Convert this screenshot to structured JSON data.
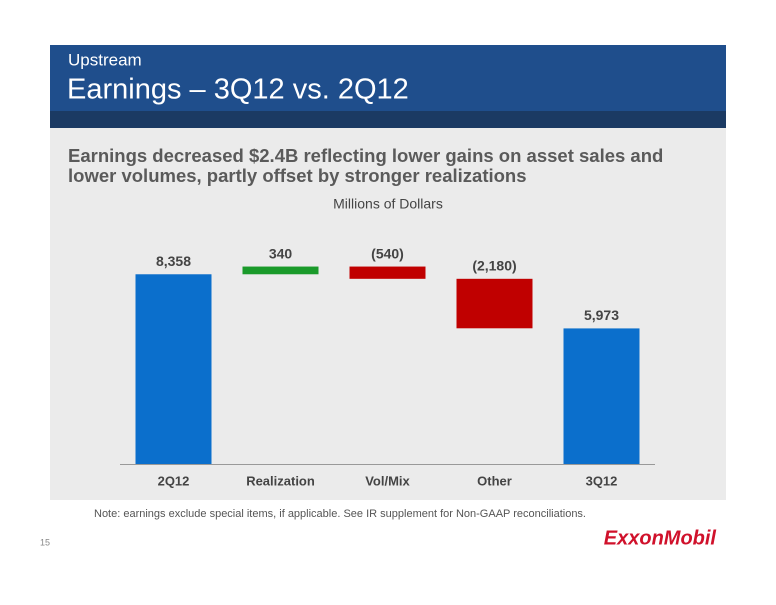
{
  "header": {
    "section": "Upstream",
    "title": "Earnings – 3Q12 vs. 2Q12"
  },
  "subtitle_lines": [
    "Earnings decreased $2.4B reflecting lower gains on asset sales and",
    "lower volumes, partly offset by stronger realizations"
  ],
  "chart_data": {
    "type": "waterfall",
    "ylabel": "Millions of Dollars",
    "categories": [
      "2Q12",
      "Realization",
      "Vol/Mix",
      "Other",
      "3Q12"
    ],
    "values": [
      8358,
      340,
      -540,
      -2180,
      5973
    ],
    "value_labels": [
      "8,358",
      "340",
      "(540)",
      "(2,180)",
      "5,973"
    ],
    "colors": [
      "#0b6fcc",
      "#1a9a2a",
      "#c00000",
      "#c00000",
      "#0b6fcc"
    ],
    "ylim": [
      0,
      10000
    ]
  },
  "footnote": "Note: earnings exclude special items, if applicable. See IR supplement for Non-GAAP reconciliations.",
  "page_number": 15,
  "logo": "ExxonMobil"
}
